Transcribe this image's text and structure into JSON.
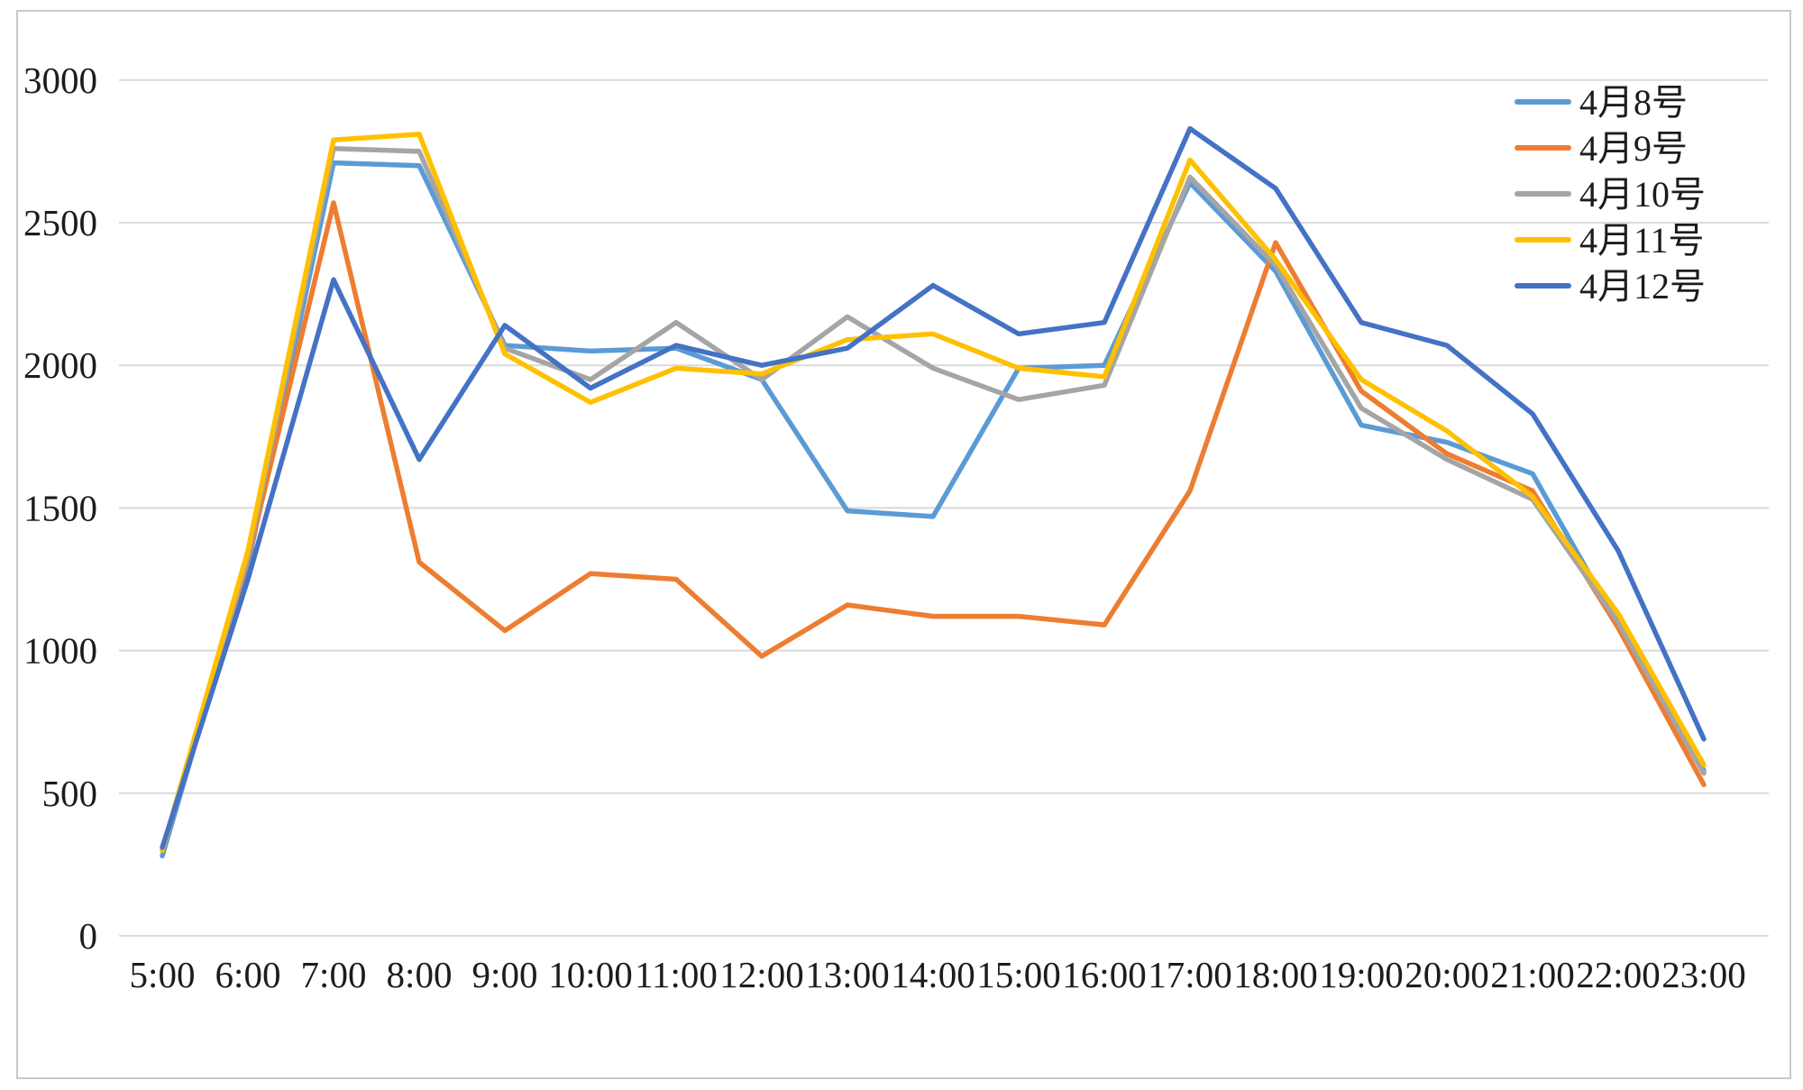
{
  "chart_data": {
    "type": "line",
    "title": "",
    "xlabel": "",
    "ylabel": "",
    "categories": [
      "5:00",
      "6:00",
      "7:00",
      "8:00",
      "9:00",
      "10:00",
      "11:00",
      "12:00",
      "13:00",
      "14:00",
      "15:00",
      "16:00",
      "17:00",
      "18:00",
      "19:00",
      "20:00",
      "21:00",
      "22:00",
      "23:00"
    ],
    "y_ticks": [
      0,
      500,
      1000,
      1500,
      2000,
      2500,
      3000
    ],
    "ylim": [
      0,
      3000
    ],
    "grid": true,
    "legend_position": "top-right",
    "series": [
      {
        "name": "4月8号",
        "color": "#5B9BD5",
        "values": [
          280,
          1300,
          2710,
          2700,
          2070,
          2050,
          2060,
          1950,
          1490,
          1470,
          1990,
          2000,
          2640,
          2330,
          1790,
          1730,
          1620,
          1090,
          580
        ]
      },
      {
        "name": "4月9号",
        "color": "#ED7D31",
        "values": [
          300,
          1320,
          2570,
          1310,
          1070,
          1270,
          1250,
          980,
          1160,
          1120,
          1120,
          1090,
          1560,
          2430,
          1910,
          1690,
          1560,
          1080,
          530
        ]
      },
      {
        "name": "4月10号",
        "color": "#A5A5A5",
        "values": [
          300,
          1330,
          2760,
          2750,
          2060,
          1950,
          2150,
          1950,
          2170,
          1990,
          1880,
          1930,
          2660,
          2350,
          1850,
          1670,
          1530,
          1100,
          570
        ]
      },
      {
        "name": "4月11号",
        "color": "#FFC000",
        "values": [
          300,
          1350,
          2790,
          2810,
          2040,
          1870,
          1990,
          1970,
          2090,
          2110,
          1990,
          1960,
          2720,
          2370,
          1950,
          1770,
          1540,
          1130,
          600
        ]
      },
      {
        "name": "4月12号",
        "color": "#4472C4",
        "values": [
          310,
          1250,
          2300,
          1670,
          2140,
          1920,
          2070,
          2000,
          2060,
          2280,
          2110,
          2150,
          2830,
          2620,
          2150,
          2070,
          1830,
          1350,
          690
        ]
      }
    ]
  },
  "frame": {
    "border_color": "#c9c9c9",
    "grid_color": "#dadada",
    "text_color": "#1c1c1c",
    "background": "#ffffff"
  }
}
